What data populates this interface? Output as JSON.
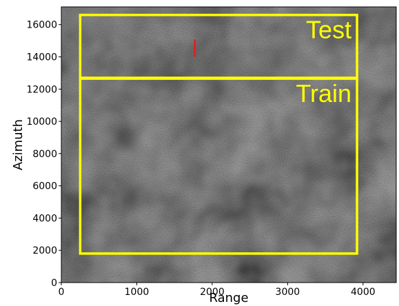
{
  "chart_data": {
    "type": "image",
    "xlabel": "Range",
    "ylabel": "Azimuth",
    "xlim": [
      0,
      4440
    ],
    "ylim": [
      0,
      17100
    ],
    "xticks": [
      0,
      1000,
      2000,
      3000,
      4000
    ],
    "yticks": [
      0,
      2000,
      4000,
      6000,
      8000,
      10000,
      12000,
      14000,
      16000
    ],
    "regions": [
      {
        "label": "Test",
        "color": "#ffff00",
        "x0": 250,
        "x1": 3920,
        "y0": 12700,
        "y1": 16600
      },
      {
        "label": "Train",
        "color": "#ffff00",
        "x0": 250,
        "x1": 3920,
        "y0": 1800,
        "y1": 12650
      }
    ],
    "marker": {
      "color": "#e02020",
      "x": 1770,
      "y0": 14000,
      "y1": 15080
    }
  }
}
